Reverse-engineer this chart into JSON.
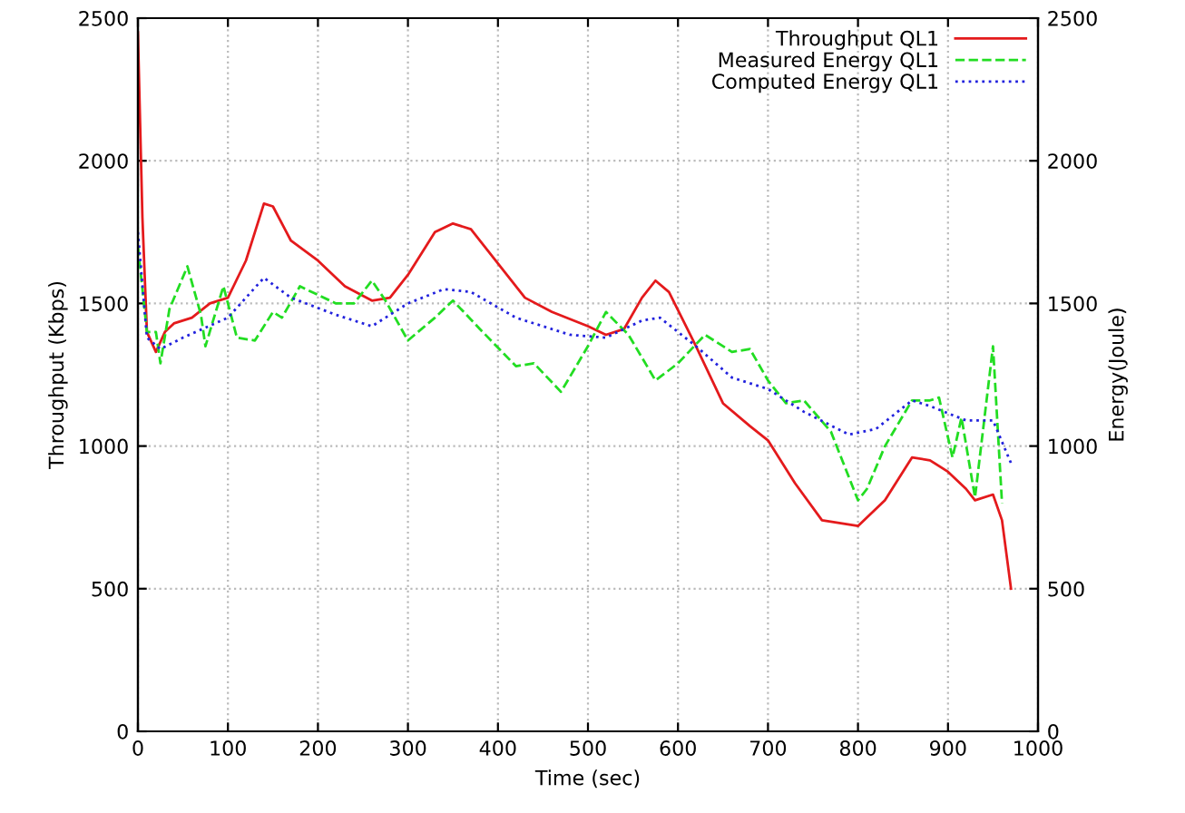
{
  "chart_data": {
    "type": "line",
    "xlabel": "Time (sec)",
    "ylabel": "Throughput (Kbps)",
    "y2label": "Energy(Joule)",
    "xlim": [
      0,
      1000
    ],
    "xticks": [
      0,
      100,
      200,
      300,
      400,
      500,
      600,
      700,
      800,
      900,
      1000
    ],
    "ylim": [
      0,
      2500
    ],
    "yticks": [
      0,
      500,
      1000,
      1500,
      2000,
      2500
    ],
    "y2lim": [
      0,
      2500
    ],
    "y2ticks": [
      0,
      500,
      1000,
      1500,
      2000,
      2500
    ],
    "grid": true,
    "legend": "top right",
    "series": [
      {
        "name": "Throughput QL1",
        "color": "#e41a1c",
        "line_style": "solid",
        "x": [
          0,
          5,
          10,
          20,
          30,
          40,
          60,
          80,
          100,
          120,
          140,
          150,
          170,
          200,
          230,
          260,
          280,
          300,
          330,
          350,
          370,
          400,
          430,
          460,
          500,
          520,
          540,
          560,
          575,
          590,
          620,
          650,
          680,
          700,
          730,
          760,
          800,
          830,
          860,
          880,
          900,
          920,
          930,
          950,
          960,
          970
        ],
        "values": [
          2450,
          1800,
          1400,
          1330,
          1400,
          1430,
          1450,
          1500,
          1520,
          1650,
          1850,
          1840,
          1720,
          1650,
          1560,
          1510,
          1520,
          1600,
          1750,
          1780,
          1760,
          1640,
          1520,
          1470,
          1420,
          1390,
          1410,
          1520,
          1580,
          1540,
          1350,
          1150,
          1070,
          1020,
          870,
          740,
          720,
          810,
          960,
          950,
          910,
          850,
          810,
          830,
          740,
          500
        ]
      },
      {
        "name": "Measured Energy QL1",
        "color": "#22dd22",
        "line_style": "dashed",
        "axis": "y2",
        "x": [
          0,
          10,
          20,
          25,
          35,
          55,
          70,
          75,
          95,
          110,
          130,
          150,
          160,
          180,
          200,
          220,
          240,
          260,
          275,
          300,
          330,
          350,
          380,
          420,
          440,
          470,
          500,
          520,
          545,
          575,
          600,
          630,
          660,
          680,
          700,
          720,
          740,
          770,
          800,
          810,
          830,
          860,
          880,
          890,
          905,
          915,
          930,
          950,
          960
        ],
        "values": [
          1700,
          1400,
          1400,
          1290,
          1480,
          1630,
          1460,
          1350,
          1560,
          1380,
          1370,
          1470,
          1450,
          1560,
          1530,
          1500,
          1500,
          1580,
          1510,
          1370,
          1450,
          1510,
          1410,
          1280,
          1290,
          1190,
          1350,
          1470,
          1390,
          1230,
          1290,
          1390,
          1330,
          1340,
          1230,
          1150,
          1160,
          1050,
          810,
          850,
          1000,
          1160,
          1160,
          1170,
          960,
          1100,
          820,
          1350,
          800
        ]
      },
      {
        "name": "Computed Energy QL1",
        "color": "#2222dd",
        "line_style": "dotted",
        "axis": "y2",
        "x": [
          0,
          10,
          25,
          50,
          100,
          140,
          170,
          220,
          260,
          300,
          340,
          370,
          420,
          480,
          520,
          560,
          580,
          620,
          660,
          700,
          740,
          790,
          820,
          860,
          880,
          920,
          950,
          970
        ],
        "values": [
          1750,
          1380,
          1340,
          1380,
          1450,
          1590,
          1520,
          1460,
          1420,
          1500,
          1550,
          1540,
          1450,
          1390,
          1380,
          1440,
          1450,
          1350,
          1240,
          1200,
          1120,
          1040,
          1060,
          1160,
          1140,
          1090,
          1090,
          940
        ]
      }
    ]
  }
}
